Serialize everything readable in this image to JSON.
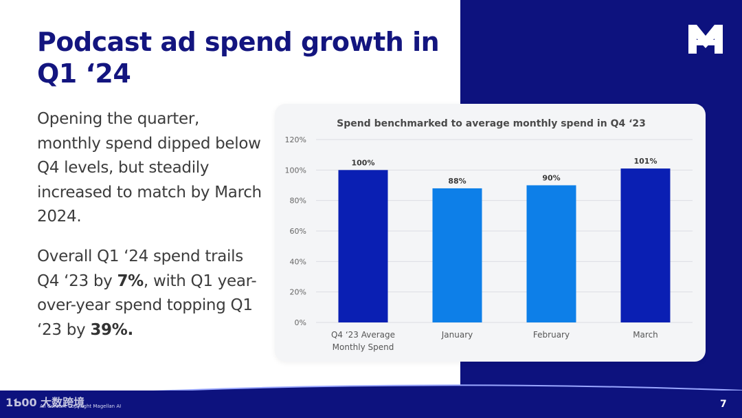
{
  "slide": {
    "title_line1": "Podcast ad spend growth in",
    "title_line2": "Q1 ‘24",
    "paragraph1": "Opening the quarter, monthly spend dipped below Q4 levels, but steadily increased to match by March 2024.",
    "paragraph2": {
      "part1": "Overall Q1 ‘24 spend trails Q4 ‘23 by ",
      "bold1": "7%",
      "part2": ", with Q1 year-over-year spend topping Q1 ‘23 by ",
      "bold2": "39%."
    },
    "page_number": "7",
    "copyright": "All Content Copyright Magellan AI",
    "watermark": "1Ƅ00 大数跨境"
  },
  "colors": {
    "navy": "#0d127e",
    "title": "#13157f",
    "bar_dark": "#0a1fb3",
    "bar_light": "#0d7fe8"
  },
  "chart_data": {
    "type": "bar",
    "title": "Spend benchmarked to average monthly spend in Q4 ‘23",
    "categories": [
      [
        "Q4 ‘23 Average",
        "Monthly Spend"
      ],
      [
        "January"
      ],
      [
        "February"
      ],
      [
        "March"
      ]
    ],
    "values": [
      100,
      88,
      90,
      101
    ],
    "value_labels": [
      "100%",
      "88%",
      "90%",
      "101%"
    ],
    "bar_colors": [
      "#0a1fb3",
      "#0d7fe8",
      "#0d7fe8",
      "#0a1fb3"
    ],
    "ylim": [
      0,
      120
    ],
    "yticks": [
      0,
      20,
      40,
      60,
      80,
      100,
      120
    ],
    "ytick_labels": [
      "0%",
      "20%",
      "40%",
      "60%",
      "80%",
      "100%",
      "120%"
    ],
    "grid": true,
    "xlabel": "",
    "ylabel": ""
  }
}
